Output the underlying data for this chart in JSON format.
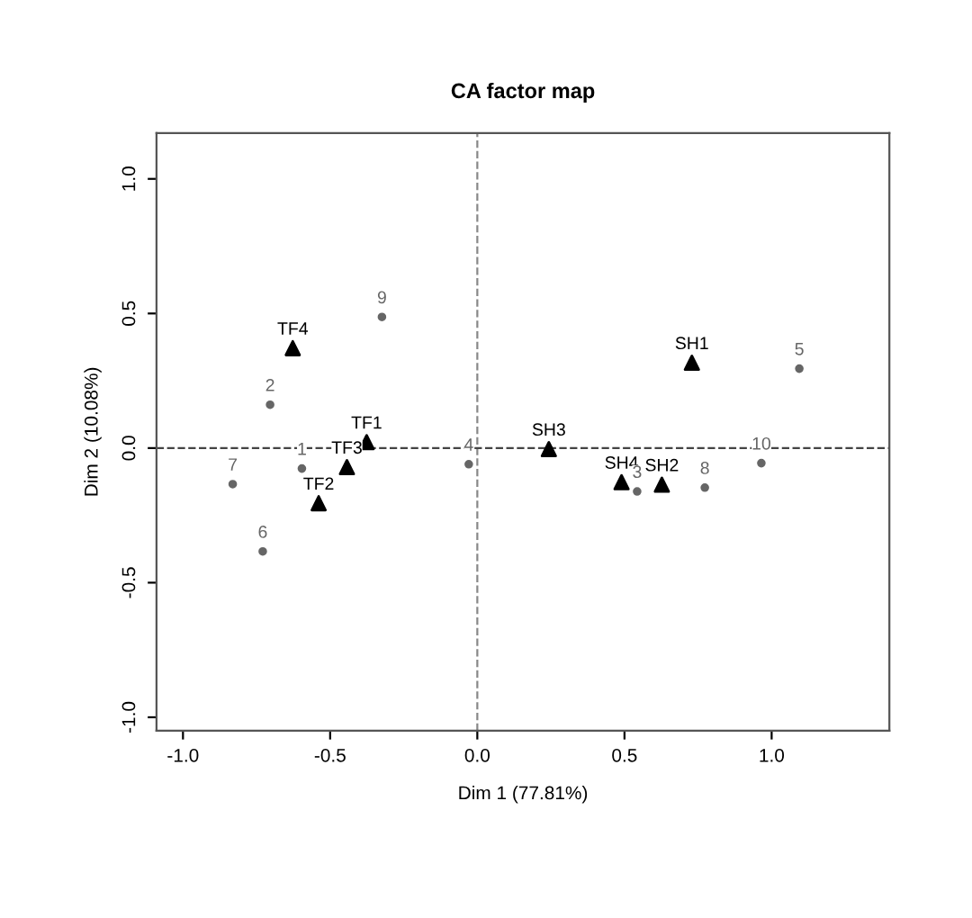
{
  "chart_data": {
    "type": "scatter",
    "title": "CA factor map",
    "xlabel": "Dim 1 (77.81%)",
    "ylabel": "Dim 2 (10.08%)",
    "series": [
      {
        "color": "#666666",
        "marker": "circle",
        "x": [
          -0.596,
          -0.704,
          0.543,
          -0.029,
          1.094,
          -0.729,
          -0.831,
          0.773,
          -0.324,
          0.965
        ],
        "values": [
          -0.076,
          0.161,
          -0.161,
          -0.06,
          0.295,
          -0.384,
          -0.134,
          -0.147,
          0.487,
          -0.056
        ]
      },
      {
        "color": "#000000",
        "marker": "triangle",
        "x": [
          -0.376,
          -0.539,
          -0.443,
          -0.627,
          0.729,
          0.627,
          0.243,
          0.49
        ],
        "values": [
          0.022,
          -0.205,
          -0.071,
          0.371,
          0.317,
          -0.136,
          -0.004,
          -0.127
        ]
      }
    ],
    "annotations": [
      {
        "text": "1",
        "x": -0.596,
        "y": -0.076
      },
      {
        "text": "2",
        "x": -0.704,
        "y": 0.161
      },
      {
        "text": "3",
        "x": 0.543,
        "y": -0.161
      },
      {
        "text": "4",
        "x": -0.029,
        "y": -0.06
      },
      {
        "text": "5",
        "x": 1.094,
        "y": 0.295
      },
      {
        "text": "6",
        "x": -0.729,
        "y": -0.384
      },
      {
        "text": "7",
        "x": -0.831,
        "y": -0.134
      },
      {
        "text": "8",
        "x": 0.773,
        "y": -0.147
      },
      {
        "text": "9",
        "x": -0.324,
        "y": 0.487
      },
      {
        "text": "10",
        "x": 0.965,
        "y": -0.056
      },
      {
        "text": "TF1",
        "x": -0.376,
        "y": 0.022
      },
      {
        "text": "TF2",
        "x": -0.539,
        "y": -0.205
      },
      {
        "text": "TF3",
        "x": -0.443,
        "y": -0.071
      },
      {
        "text": "TF4",
        "x": -0.627,
        "y": 0.371
      },
      {
        "text": "SH1",
        "x": 0.729,
        "y": 0.317
      },
      {
        "text": "SH2",
        "x": 0.627,
        "y": -0.136
      },
      {
        "text": "SH3",
        "x": 0.243,
        "y": -0.004
      },
      {
        "text": "SH4",
        "x": 0.49,
        "y": -0.127
      }
    ],
    "xlim": [
      -1.09,
      1.4
    ],
    "ylim": [
      -1.05,
      1.17
    ],
    "xticks": [
      {
        "value": -1.0,
        "label": "-1.0"
      },
      {
        "value": -0.5,
        "label": "-0.5"
      },
      {
        "value": 0.0,
        "label": "0.0"
      },
      {
        "value": 0.5,
        "label": "0.5"
      },
      {
        "value": 1.0,
        "label": "1.0"
      }
    ],
    "yticks": [
      {
        "value": -1.0,
        "label": "-1.0"
      },
      {
        "value": -0.5,
        "label": "-0.5"
      },
      {
        "value": 0.0,
        "label": "0.0"
      },
      {
        "value": 0.5,
        "label": "0.5"
      },
      {
        "value": 1.0,
        "label": "1.0"
      }
    ],
    "ref_lines": [
      {
        "axis": "x",
        "value": 0,
        "line_style": "dashed",
        "color": "#888888"
      },
      {
        "axis": "y",
        "value": 0,
        "line_style": "dashed",
        "color": "#444444"
      }
    ],
    "grid": false
  }
}
